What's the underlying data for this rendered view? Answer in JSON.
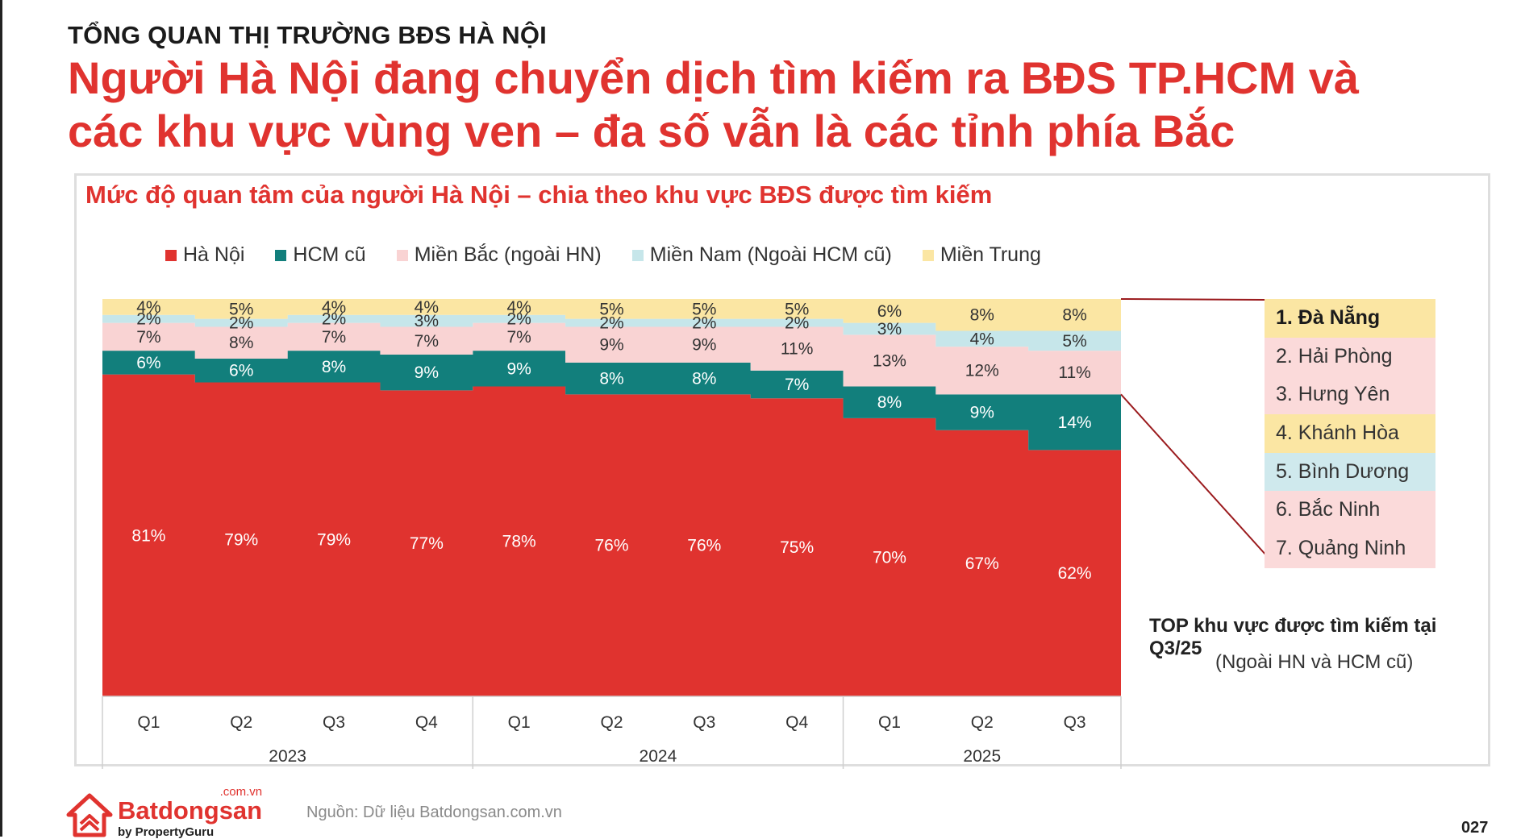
{
  "header": {
    "kicker": "TỔNG QUAN THỊ TRƯỜNG BĐS HÀ NỘI",
    "headline_line1": "Người Hà Nội đang chuyển dịch tìm kiếm ra BĐS TP.HCM và",
    "headline_line2": "các khu vực vùng ven – đa số vẫn là các tỉnh phía Bắc"
  },
  "chart_data": {
    "type": "bar",
    "stacked": true,
    "normalized": "100%",
    "title": "Mức độ quan tâm của người Hà Nội – chia theo khu vực BĐS được tìm kiếm",
    "xlabel": "",
    "ylabel": "",
    "ylim": [
      0,
      100
    ],
    "legend_position": "top",
    "categories": [
      "Q1",
      "Q2",
      "Q3",
      "Q4",
      "Q1",
      "Q2",
      "Q3",
      "Q4",
      "Q1",
      "Q2",
      "Q3"
    ],
    "years": [
      {
        "label": "2023",
        "span": 4
      },
      {
        "label": "2024",
        "span": 4
      },
      {
        "label": "2025",
        "span": 3
      }
    ],
    "series": [
      {
        "name": "Hà Nội",
        "color": "#e0332f",
        "values": [
          81,
          79,
          79,
          77,
          78,
          76,
          76,
          75,
          70,
          67,
          62
        ]
      },
      {
        "name": "HCM cũ",
        "color": "#127f7c",
        "values": [
          6,
          6,
          8,
          9,
          9,
          8,
          8,
          7,
          8,
          9,
          14
        ]
      },
      {
        "name": "Miền Bắc (ngoài HN)",
        "color": "#f9d3d3",
        "values": [
          7,
          8,
          7,
          7,
          7,
          9,
          9,
          11,
          13,
          12,
          11
        ]
      },
      {
        "name": "Miền Nam (Ngoài HCM cũ)",
        "color": "#c6e6ea",
        "values": [
          2,
          2,
          2,
          3,
          2,
          2,
          2,
          2,
          3,
          4,
          5
        ]
      },
      {
        "name": "Miền Trung",
        "color": "#fbe6a3",
        "values": [
          4,
          5,
          4,
          4,
          4,
          5,
          5,
          5,
          6,
          8,
          8
        ]
      }
    ]
  },
  "top_regions": {
    "items": [
      {
        "label": "1. Đà Nẵng",
        "color": "#fbe6a3"
      },
      {
        "label": "2. Hải Phòng",
        "color": "#fbdada"
      },
      {
        "label": "3. Hưng Yên",
        "color": "#fbdada"
      },
      {
        "label": "4. Khánh Hòa",
        "color": "#fbe6a3"
      },
      {
        "label": "5. Bình Dương",
        "color": "#cfe9ed"
      },
      {
        "label": "6. Bắc Ninh",
        "color": "#fbdada"
      },
      {
        "label": "7. Quảng Ninh",
        "color": "#fbdada"
      }
    ],
    "caption": "TOP khu vực được tìm kiếm tại Q3/25",
    "subcaption": "(Ngoài HN và HCM cũ)",
    "connector_color": "#9b1b1e"
  },
  "footer": {
    "logo_domain": ".com.vn",
    "logo_name": "Batdongsan",
    "logo_by": "by PropertyGuru",
    "source": "Nguồn: Dữ liệu Batdongsan.com.vn",
    "page_number": "027"
  },
  "colors": {
    "brand_red": "#e0332f",
    "text_dark": "#1b1b1b"
  }
}
